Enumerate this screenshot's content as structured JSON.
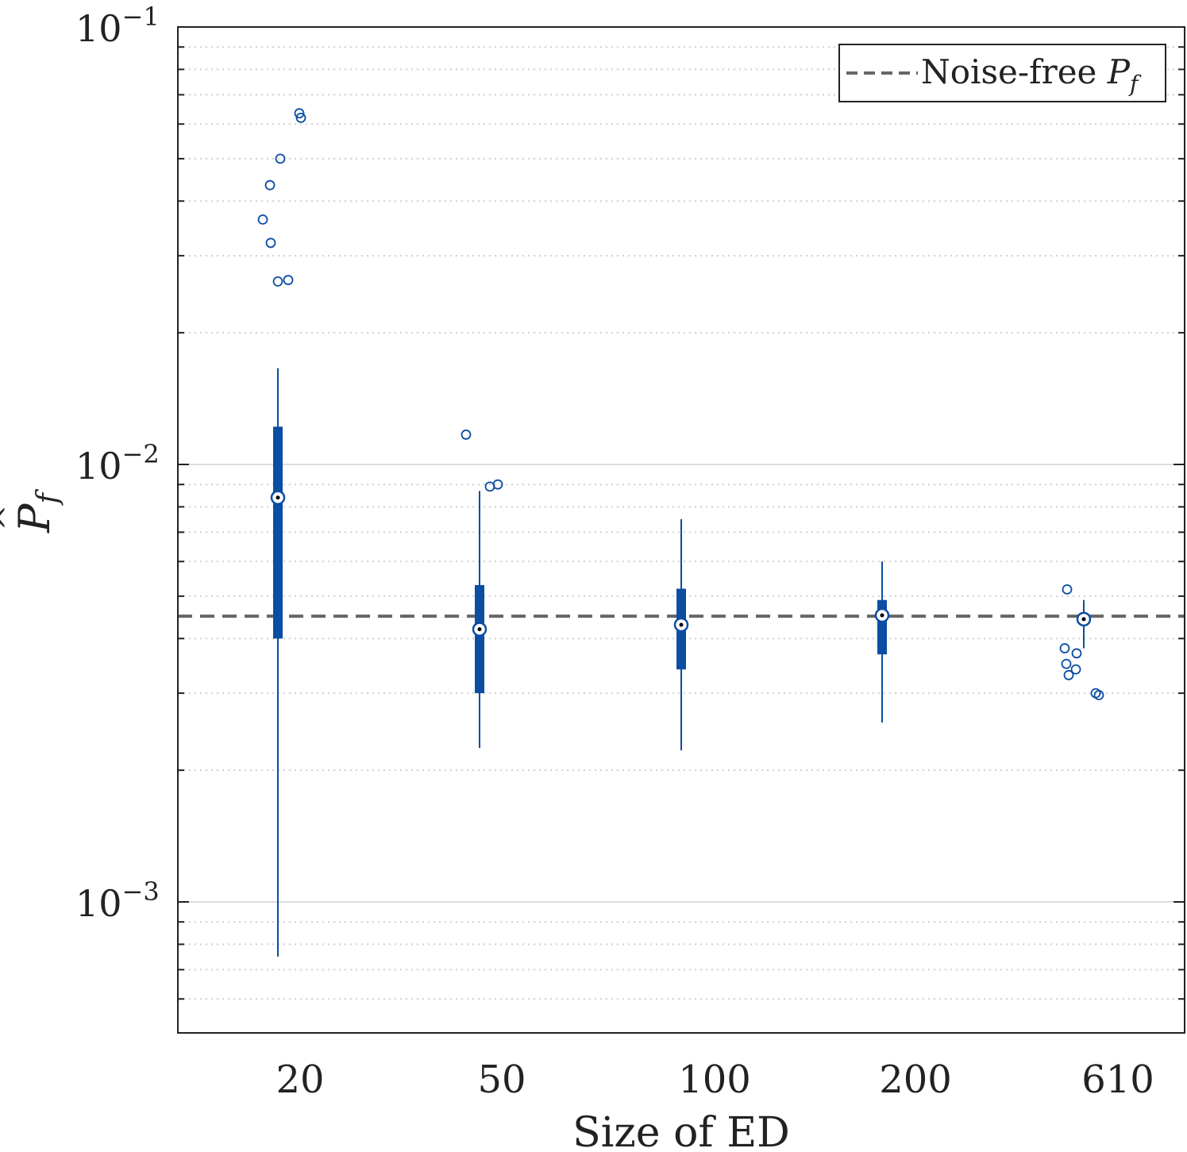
{
  "chart_data": {
    "type": "box",
    "title": "",
    "xlabel": "Size of ED",
    "ylabel_base": "P",
    "ylabel_hat": "^",
    "ylabel_sub": "f",
    "yscale": "log",
    "ylim": [
      0.00055,
      0.1
    ],
    "ytick_base": "10",
    "yticks": [
      {
        "value": 0.1,
        "exp": "−1"
      },
      {
        "value": 0.01,
        "exp": "−2"
      },
      {
        "value": 0.001,
        "exp": "−3"
      }
    ],
    "categories": [
      "20",
      "50",
      "100",
      "200",
      "610"
    ],
    "reference": {
      "label": "Noise-free ",
      "label_math": "P",
      "label_sub": "f",
      "value": 0.0045,
      "color": "#666666",
      "legend_position": "top-right"
    },
    "colors": {
      "box": "#0b4ea2",
      "outlier": "#0b4ea2"
    },
    "boxes": [
      {
        "category": "20",
        "whisker_low": 0.00075,
        "q1": 0.004,
        "median": 0.0084,
        "q3": 0.0122,
        "whisker_high": 0.0166,
        "outliers": [
          0.0635,
          0.062,
          0.05,
          0.0435,
          0.0363,
          0.0321,
          0.0262,
          0.0264
        ]
      },
      {
        "category": "50",
        "whisker_low": 0.00225,
        "q1": 0.003,
        "median": 0.0042,
        "q3": 0.0053,
        "whisker_high": 0.0087,
        "outliers": [
          0.0117,
          0.0089,
          0.009
        ]
      },
      {
        "category": "100",
        "whisker_low": 0.00222,
        "q1": 0.0034,
        "median": 0.0043,
        "q3": 0.0052,
        "whisker_high": 0.0075,
        "outliers": []
      },
      {
        "category": "200",
        "whisker_low": 0.00257,
        "q1": 0.00368,
        "median": 0.00452,
        "q3": 0.0049,
        "whisker_high": 0.006,
        "outliers": []
      },
      {
        "category": "610",
        "whisker_low": 0.0038,
        "q1": 0.0043,
        "median": 0.00443,
        "q3": 0.00455,
        "whisker_high": 0.0049,
        "outliers": [
          0.00518,
          0.0038,
          0.0037,
          0.0035,
          0.0034,
          0.0033,
          0.003,
          0.00297
        ]
      }
    ]
  }
}
